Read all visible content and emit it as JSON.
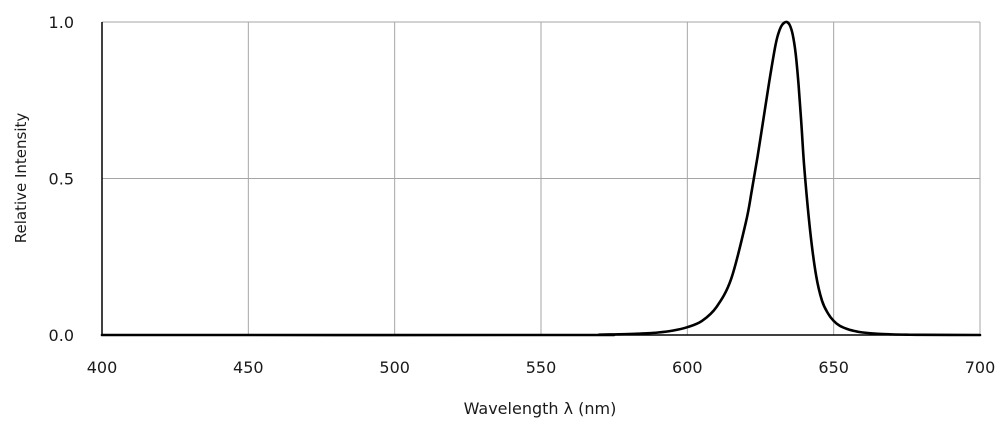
{
  "chart_data": {
    "type": "line",
    "title": "",
    "xlabel": "Wavelength  λ  (nm)",
    "ylabel": "Relative Intensity",
    "xlim": [
      400,
      700
    ],
    "ylim": [
      0,
      1
    ],
    "xticks": [
      400,
      450,
      500,
      550,
      600,
      650,
      700
    ],
    "xtick_labels": [
      "400",
      "450",
      "500",
      "550",
      "600",
      "650",
      "700"
    ],
    "yticks": [
      0,
      0.5,
      1
    ],
    "ytick_labels": [
      "0.0",
      "0.5",
      "1.0"
    ],
    "grid": true,
    "legend": "none",
    "colors": {
      "line": "#000000",
      "grid": "#a6a6a6",
      "axis": "#000000"
    },
    "series": [
      {
        "x": [
          400,
          560,
          570,
          575,
          580,
          585,
          590,
          595,
          600,
          605,
          610,
          615,
          620,
          622,
          624,
          626,
          628,
          630,
          631,
          632,
          633,
          634,
          635,
          636,
          637,
          638,
          639,
          640,
          642,
          644,
          646,
          648,
          650,
          652,
          655,
          658,
          660,
          665,
          670,
          675,
          680,
          700
        ],
        "y": [
          0,
          0,
          0.001,
          0.002,
          0.003,
          0.005,
          0.008,
          0.014,
          0.025,
          0.045,
          0.09,
          0.18,
          0.36,
          0.46,
          0.57,
          0.69,
          0.81,
          0.92,
          0.96,
          0.985,
          0.997,
          1.0,
          0.99,
          0.96,
          0.9,
          0.8,
          0.67,
          0.53,
          0.33,
          0.19,
          0.11,
          0.07,
          0.045,
          0.03,
          0.018,
          0.011,
          0.008,
          0.004,
          0.002,
          0.001,
          0.0005,
          0
        ]
      }
    ]
  }
}
